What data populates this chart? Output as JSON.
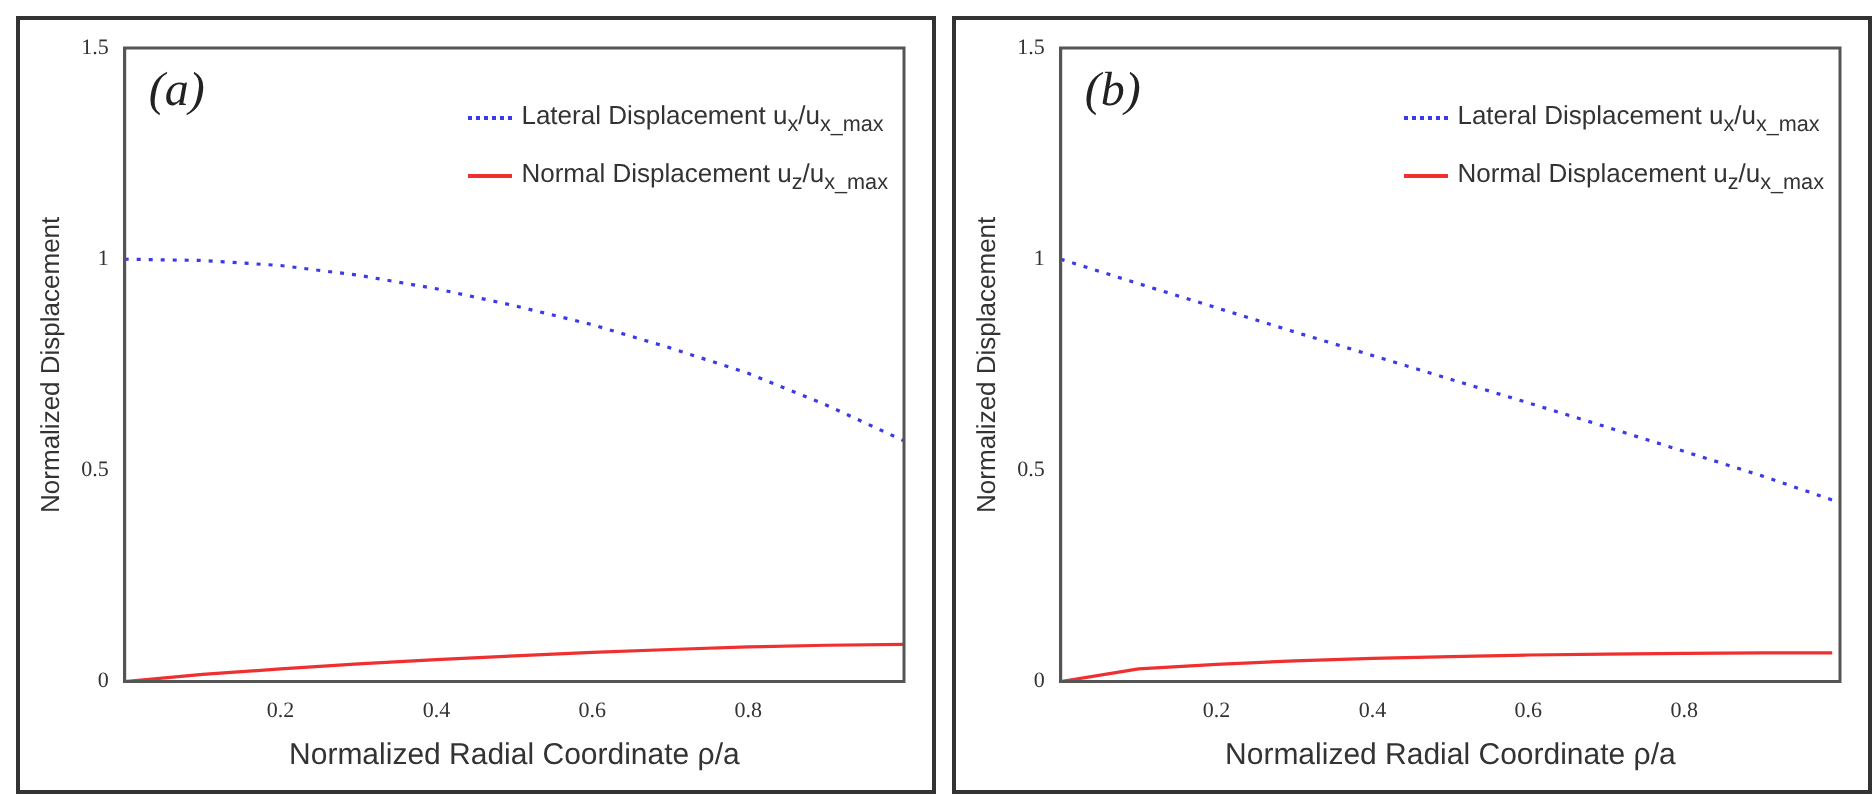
{
  "chart_data": [
    {
      "type": "line",
      "annotations": [
        "(a)"
      ],
      "xlabel": "Normalized Radial Coordinate ρ/a",
      "ylabel": "Normalized Displacement",
      "xlim": [
        0,
        1
      ],
      "xticks": [
        0.2,
        0.4,
        0.6,
        0.8
      ],
      "ylim": [
        0,
        1.5
      ],
      "yticks": [
        0,
        0.5,
        1,
        1.5
      ],
      "grid": false,
      "legend": "top right",
      "marker": "none",
      "series": [
        {
          "name": "Lateral Displacement  u$_{x}$/u$_{x_max}$",
          "color": "#3a3ae8",
          "line_style": "dotted",
          "x": [
            0,
            0.1,
            0.2,
            0.3,
            0.4,
            0.5,
            0.6,
            0.7,
            0.8,
            0.9,
            1
          ],
          "values": [
            1.0,
            0.997,
            0.985,
            0.962,
            0.93,
            0.89,
            0.845,
            0.79,
            0.73,
            0.655,
            0.57
          ]
        },
        {
          "name": "Normal Displacement  u$_{z}$/u$_{x_max}$",
          "color": "#f03030",
          "line_style": "solid",
          "x": [
            0,
            0.1,
            0.2,
            0.3,
            0.4,
            0.5,
            0.6,
            0.7,
            0.8,
            0.9,
            1
          ],
          "values": [
            0,
            0.017,
            0.03,
            0.042,
            0.052,
            0.061,
            0.069,
            0.076,
            0.082,
            0.086,
            0.088
          ]
        }
      ]
    },
    {
      "type": "line",
      "annotations": [
        "(b)"
      ],
      "xlabel": "Normalized Radial Coordinate ρ/a",
      "ylabel": "Normalized Displacement",
      "xlim": [
        0,
        1
      ],
      "xticks": [
        0.2,
        0.4,
        0.6,
        0.8
      ],
      "ylim": [
        0,
        1.5
      ],
      "yticks": [
        0,
        0.5,
        1,
        1.5
      ],
      "grid": false,
      "legend": "top right",
      "marker": "none",
      "series": [
        {
          "name": "Lateral Displacement  u$_{x}$/u$_{x_max}$",
          "color": "#3a3ae8",
          "line_style": "dotted",
          "x": [
            0,
            0.1,
            0.2,
            0.3,
            0.4,
            0.5,
            0.6,
            0.7,
            0.8,
            0.9,
            0.99
          ],
          "values": [
            1.0,
            0.942,
            0.885,
            0.828,
            0.772,
            0.716,
            0.66,
            0.603,
            0.545,
            0.487,
            0.43
          ]
        },
        {
          "name": "Normal Displacement  u$_{z}$/u$_{x_max}$",
          "color": "#f03030",
          "line_style": "solid",
          "x": [
            0,
            0.1,
            0.2,
            0.3,
            0.4,
            0.5,
            0.6,
            0.7,
            0.8,
            0.9,
            0.99
          ],
          "values": [
            0,
            0.03,
            0.041,
            0.049,
            0.055,
            0.059,
            0.063,
            0.065,
            0.067,
            0.068,
            0.068
          ]
        }
      ]
    }
  ]
}
